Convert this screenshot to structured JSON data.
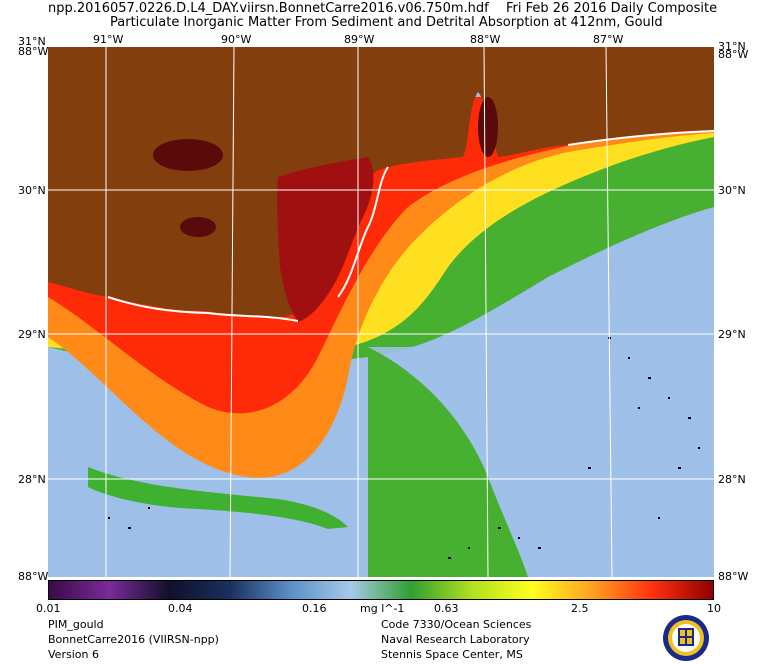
{
  "header": {
    "filename": "npp.2016057.0226.D.L4_DAY.viirsn.BonnetCarre2016.v06.750m.hdf",
    "date": "Fri Feb 26 2016 Daily Composite",
    "product": "Particulate Inorganic Matter From Sediment and Detrital Absorption at 412nm, Gould"
  },
  "axes": {
    "lon_top": [
      "91°W",
      "90°W",
      "89°W",
      "88°W",
      "87°W"
    ],
    "lat_left": [
      "31°N",
      "30°N",
      "29°N",
      "28°N"
    ],
    "lat_right": [
      "31°N",
      "30°N",
      "29°N",
      "28°N"
    ],
    "corner_top_left": "88°W",
    "corner_top_right": "88°W",
    "corner_bottom_left": "88°W",
    "corner_bottom_right": "88°W"
  },
  "colorbar": {
    "ticks": [
      "0.01",
      "0.04",
      "0.16",
      "0.63",
      "2.5",
      "10"
    ],
    "units": "mg l^-1",
    "colors": [
      "#3a0a4a",
      "#7a2a9a",
      "#10102a",
      "#1a3060",
      "#5a90c8",
      "#a8c8e8",
      "#30a030",
      "#b0e020",
      "#ffff20",
      "#ffa020",
      "#ff3010",
      "#900000"
    ]
  },
  "footer": {
    "left": [
      "PIM_gould",
      "BonnetCarre2016 (VIIRSN-npp)",
      "Version 6"
    ],
    "right": [
      "Code 7330/Ocean Sciences",
      "Naval Research Laboratory",
      "Stennis Space Center, MS"
    ]
  },
  "logo": {
    "name": "naval-research-laboratory-seal"
  }
}
